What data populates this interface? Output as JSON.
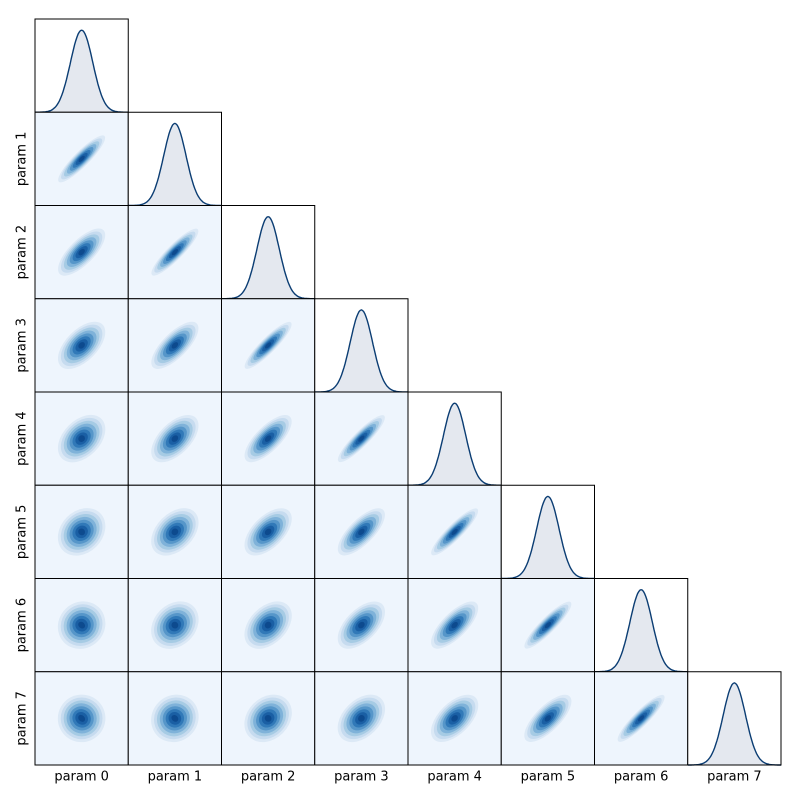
{
  "chart_data": {
    "type": "corner",
    "labels": [
      "param 0",
      "param 1",
      "param 2",
      "param 3",
      "param 4",
      "param 5",
      "param 6",
      "param 7"
    ]
  }
}
